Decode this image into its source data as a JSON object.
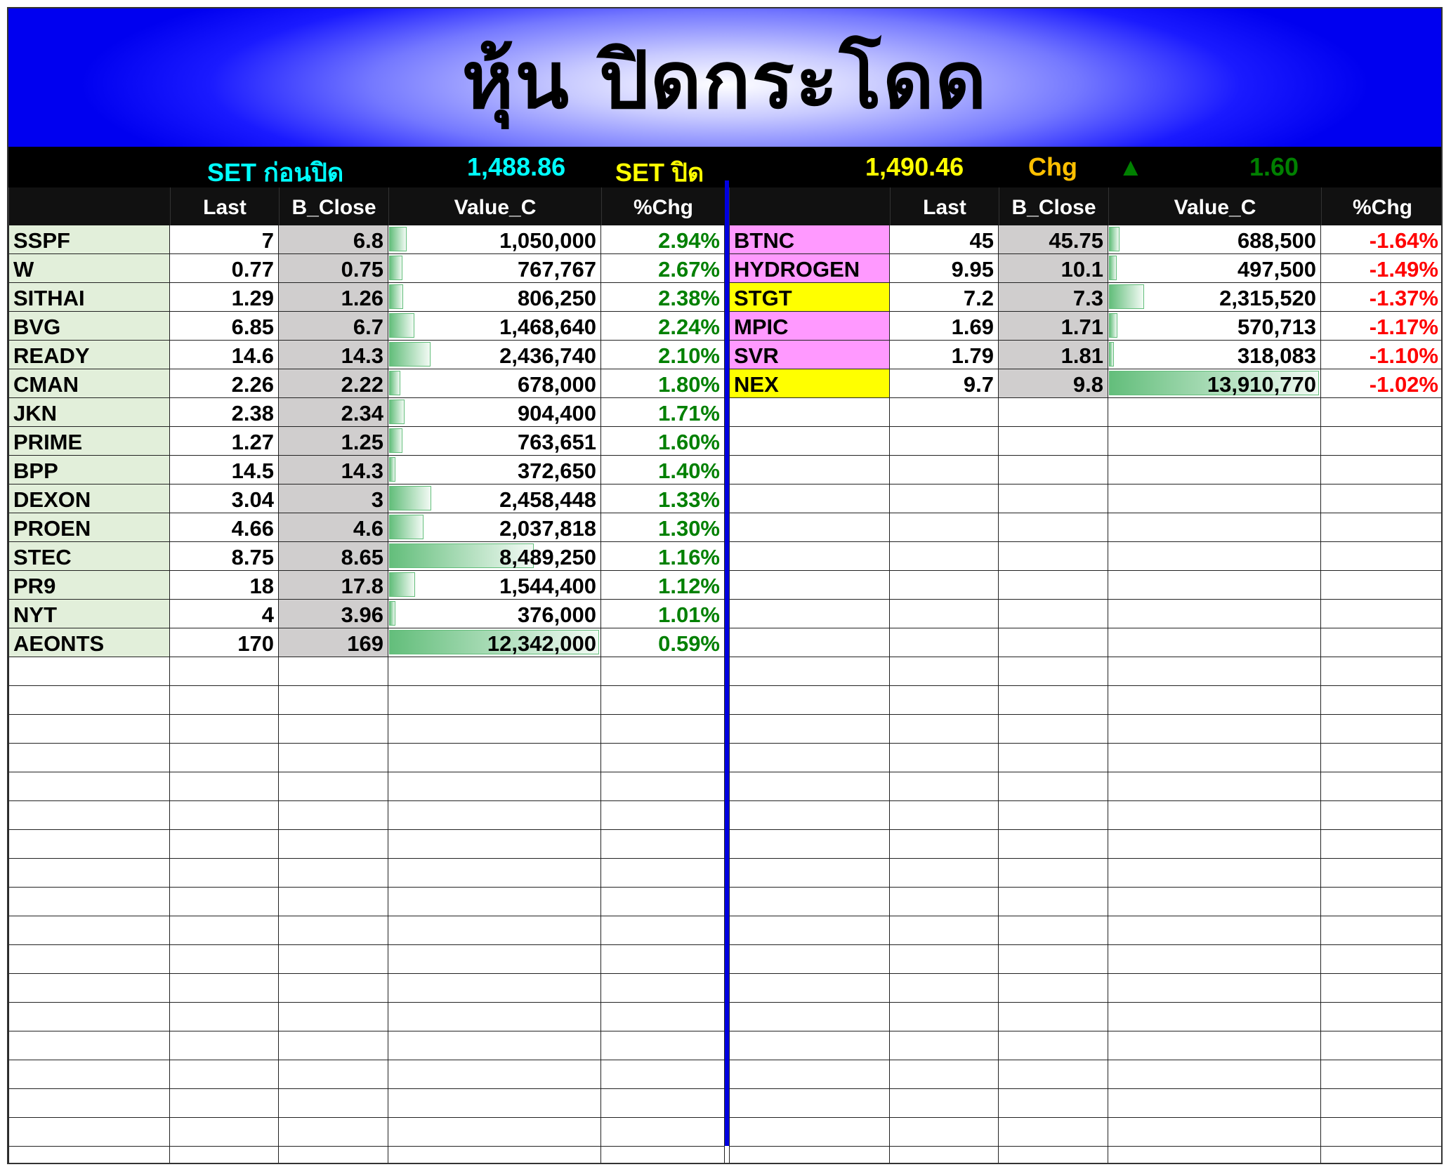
{
  "title": "หุ้น ปิดกระโดด",
  "summary": {
    "set_before_label": "SET ก่อนปิด",
    "set_before_value": "1,488.86",
    "set_close_label": "SET  ปิด",
    "set_close_value": "1,490.46",
    "chg_label": "Chg",
    "chg_direction_icon": "triangle-up-icon",
    "chg_value": "1.60"
  },
  "columns": [
    "",
    "Last",
    "B_Close",
    "Value_C",
    "%Chg"
  ],
  "colors": {
    "up": "#008000",
    "down": "#ff0000",
    "name_bg": "#e2efda",
    "bclose_bg": "#d0cece",
    "pink": "#ff99ff",
    "yellow": "#ffff00",
    "divider": "#0000e0"
  },
  "gainers": [
    {
      "symbol": "SSPF",
      "last": "7",
      "b_close": "6.8",
      "value_c": "1,050,000",
      "pct": "2.94%"
    },
    {
      "symbol": "W",
      "last": "0.77",
      "b_close": "0.75",
      "value_c": "767,767",
      "pct": "2.67%"
    },
    {
      "symbol": "SITHAI",
      "last": "1.29",
      "b_close": "1.26",
      "value_c": "806,250",
      "pct": "2.38%"
    },
    {
      "symbol": "BVG",
      "last": "6.85",
      "b_close": "6.7",
      "value_c": "1,468,640",
      "pct": "2.24%"
    },
    {
      "symbol": "READY",
      "last": "14.6",
      "b_close": "14.3",
      "value_c": "2,436,740",
      "pct": "2.10%"
    },
    {
      "symbol": "CMAN",
      "last": "2.26",
      "b_close": "2.22",
      "value_c": "678,000",
      "pct": "1.80%"
    },
    {
      "symbol": "JKN",
      "last": "2.38",
      "b_close": "2.34",
      "value_c": "904,400",
      "pct": "1.71%"
    },
    {
      "symbol": "PRIME",
      "last": "1.27",
      "b_close": "1.25",
      "value_c": "763,651",
      "pct": "1.60%"
    },
    {
      "symbol": "BPP",
      "last": "14.5",
      "b_close": "14.3",
      "value_c": "372,650",
      "pct": "1.40%"
    },
    {
      "symbol": "DEXON",
      "last": "3.04",
      "b_close": "3",
      "value_c": "2,458,448",
      "pct": "1.33%"
    },
    {
      "symbol": "PROEN",
      "last": "4.66",
      "b_close": "4.6",
      "value_c": "2,037,818",
      "pct": "1.30%"
    },
    {
      "symbol": "STEC",
      "last": "8.75",
      "b_close": "8.65",
      "value_c": "8,489,250",
      "pct": "1.16%"
    },
    {
      "symbol": "PR9",
      "last": "18",
      "b_close": "17.8",
      "value_c": "1,544,400",
      "pct": "1.12%"
    },
    {
      "symbol": "NYT",
      "last": "4",
      "b_close": "3.96",
      "value_c": "376,000",
      "pct": "1.01%"
    },
    {
      "symbol": "AEONTS",
      "last": "170",
      "b_close": "169",
      "value_c": "12,342,000",
      "pct": "0.59%"
    }
  ],
  "losers": [
    {
      "symbol": "BTNC",
      "highlight": "pink",
      "last": "45",
      "b_close": "45.75",
      "value_c": "688,500",
      "pct": "-1.64%"
    },
    {
      "symbol": "HYDROGEN",
      "highlight": "pink",
      "last": "9.95",
      "b_close": "10.1",
      "value_c": "497,500",
      "pct": "-1.49%"
    },
    {
      "symbol": "STGT",
      "highlight": "yellow",
      "last": "7.2",
      "b_close": "7.3",
      "value_c": "2,315,520",
      "pct": "-1.37%"
    },
    {
      "symbol": "MPIC",
      "highlight": "pink",
      "last": "1.69",
      "b_close": "1.71",
      "value_c": "570,713",
      "pct": "-1.17%"
    },
    {
      "symbol": "SVR",
      "highlight": "pink",
      "last": "1.79",
      "b_close": "1.81",
      "value_c": "318,083",
      "pct": "-1.10%"
    },
    {
      "symbol": "NEX",
      "highlight": "yellow",
      "last": "9.7",
      "b_close": "9.8",
      "value_c": "13,910,770",
      "pct": "-1.02%"
    }
  ]
}
